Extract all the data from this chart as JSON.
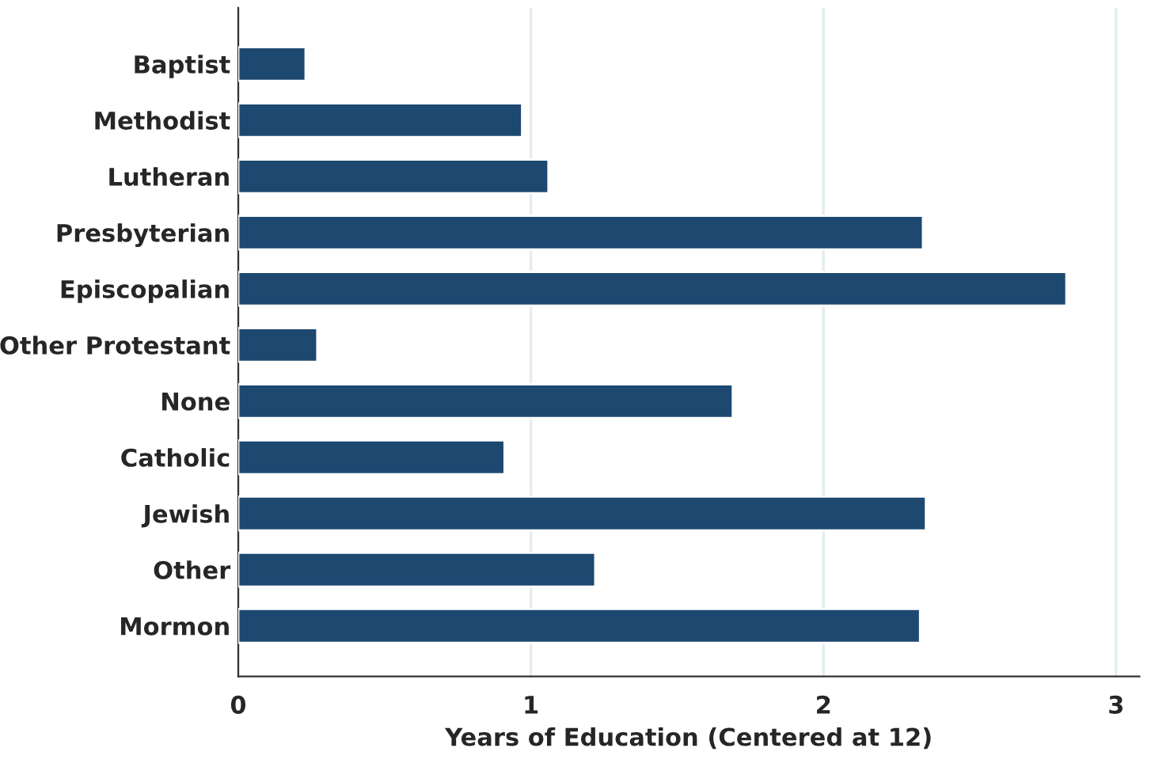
{
  "chart_data": {
    "type": "bar",
    "orientation": "horizontal",
    "xlabel": "Years of Education (Centered at 12)",
    "categories": [
      "Baptist",
      "Methodist",
      "Lutheran",
      "Presbyterian",
      "Episcopalian",
      "Other Protestant",
      "None",
      "Catholic",
      "Jewish",
      "Other",
      "Mormon"
    ],
    "values": [
      0.23,
      0.97,
      1.06,
      2.34,
      2.83,
      0.27,
      1.69,
      0.91,
      2.35,
      1.22,
      2.33
    ],
    "color": "#1d4870",
    "xlim": [
      0,
      3.08
    ],
    "xticks": [
      0,
      1,
      2,
      3
    ],
    "grid": "x"
  }
}
